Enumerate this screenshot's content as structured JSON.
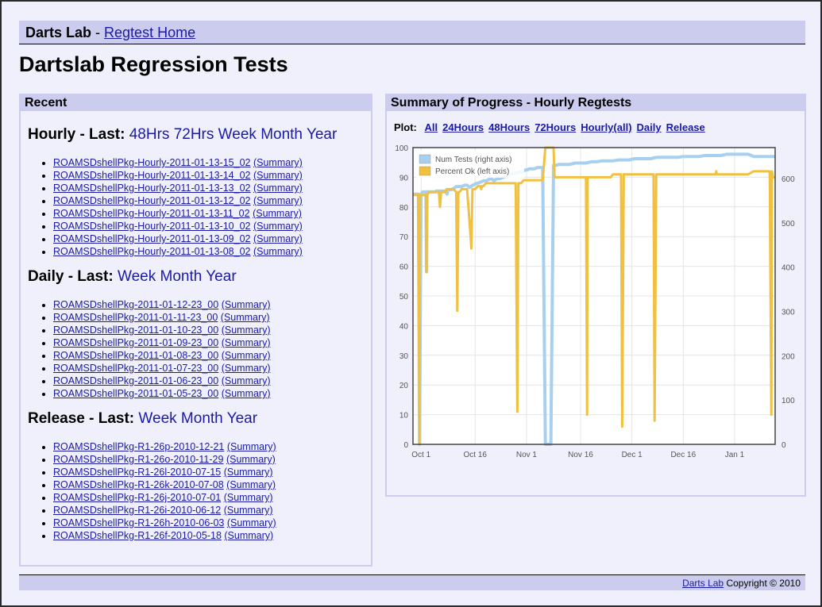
{
  "header": {
    "brand": "Darts Lab",
    "separator": " - ",
    "home_link": "Regtest Home"
  },
  "page_title": "Dartslab Regression Tests",
  "recent": {
    "title": "Recent",
    "hourly": {
      "label": "Hourly - Last:",
      "periods": [
        "48Hrs",
        "72Hrs",
        "Week",
        "Month",
        "Year"
      ],
      "items": [
        "ROAMSDshellPkg-Hourly-2011-01-13-15_02",
        "ROAMSDshellPkg-Hourly-2011-01-13-14_02",
        "ROAMSDshellPkg-Hourly-2011-01-13-13_02",
        "ROAMSDshellPkg-Hourly-2011-01-13-12_02",
        "ROAMSDshellPkg-Hourly-2011-01-13-11_02",
        "ROAMSDshellPkg-Hourly-2011-01-13-10_02",
        "ROAMSDshellPkg-Hourly-2011-01-13-09_02",
        "ROAMSDshellPkg-Hourly-2011-01-13-08_02"
      ]
    },
    "daily": {
      "label": "Daily - Last:",
      "periods": [
        "Week",
        "Month",
        "Year"
      ],
      "items": [
        "ROAMSDshellPkg-2011-01-12-23_00",
        "ROAMSDshellPkg-2011-01-11-23_00",
        "ROAMSDshellPkg-2011-01-10-23_00",
        "ROAMSDshellPkg-2011-01-09-23_00",
        "ROAMSDshellPkg-2011-01-08-23_00",
        "ROAMSDshellPkg-2011-01-07-23_00",
        "ROAMSDshellPkg-2011-01-06-23_00",
        "ROAMSDshellPkg-2011-01-05-23_00"
      ]
    },
    "release": {
      "label": "Release - Last:",
      "periods": [
        "Week",
        "Month",
        "Year"
      ],
      "items": [
        "ROAMSDshellPkg-R1-26p-2010-12-21",
        "ROAMSDshellPkg-R1-26o-2010-11-29",
        "ROAMSDshellPkg-R1-26l-2010-07-15",
        "ROAMSDshellPkg-R1-26k-2010-07-08",
        "ROAMSDshellPkg-R1-26j-2010-07-01",
        "ROAMSDshellPkg-R1-26i-2010-06-12",
        "ROAMSDshellPkg-R1-26h-2010-06-03",
        "ROAMSDshellPkg-R1-26f-2010-05-18"
      ]
    },
    "summary_label": "(Summary)"
  },
  "summary": {
    "title": "Summary of Progress - Hourly Regtests",
    "plot_label": "Plot:",
    "plot_links": [
      "All",
      "24Hours",
      "48Hours",
      "72Hours",
      "Hourly(all)",
      "Daily",
      "Release"
    ]
  },
  "chart_data": {
    "type": "line",
    "x_ticks": [
      "Oct 1",
      "Oct 16",
      "Nov 1",
      "Nov 16",
      "Dec 1",
      "Dec 16",
      "Jan 1"
    ],
    "y_left": {
      "range": [
        0,
        100
      ],
      "ticks": [
        0,
        10,
        20,
        30,
        40,
        50,
        60,
        70,
        80,
        90,
        100
      ]
    },
    "y_right": {
      "range": [
        0,
        670
      ],
      "ticks": [
        0,
        100,
        200,
        300,
        400,
        500,
        600
      ]
    },
    "grid": true,
    "legend_position": "top-left",
    "series": [
      {
        "name": "Num Tests (right axis)",
        "color": "#a8d0ee",
        "axis": "right",
        "x": [
          0,
          0.5,
          1,
          2,
          3,
          5,
          8,
          10,
          12,
          15,
          18,
          20,
          24,
          25,
          26,
          30,
          32,
          34,
          36,
          40,
          44,
          47,
          48,
          48.5,
          51,
          51.5,
          52,
          56,
          60,
          63,
          64,
          66,
          70,
          72,
          76,
          80,
          81,
          82,
          85,
          90,
          95,
          100,
          105,
          110,
          111,
          112,
          115,
          120,
          125,
          130,
          135,
          140,
          145,
          150,
          155,
          160,
          165,
          170,
          175,
          180,
          185,
          190,
          195,
          200,
          205,
          210,
          212,
          215,
          220,
          225,
          230,
          235,
          240,
          245,
          250,
          255,
          260,
          261,
          262,
          265,
          270,
          280,
          290,
          300,
          310,
          320,
          330,
          340,
          350,
          360,
          364,
          365,
          366,
          370,
          380,
          390,
          400,
          410,
          420,
          430,
          440,
          450,
          460,
          470,
          475,
          480,
          490,
          500,
          510,
          520,
          530,
          540,
          550,
          560,
          570,
          580,
          590,
          600,
          610,
          620,
          630,
          640,
          650,
          660,
          670
        ],
        "y": [
          565,
          565,
          565,
          565,
          565,
          565,
          565,
          565,
          0,
          565,
          570,
          570,
          570,
          390,
          570,
          570,
          570,
          570,
          570,
          570,
          572,
          572,
          572,
          572,
          572,
          572,
          572,
          572,
          572,
          565,
          572,
          575,
          575,
          575,
          578,
          582,
          582,
          582,
          582,
          582,
          585,
          585,
          580,
          585,
          585,
          585,
          588,
          590,
          592,
          595,
          595,
          598,
          600,
          595,
          600,
          600,
          602,
          605,
          605,
          610,
          612,
          612,
          615,
          615,
          618,
          620,
          620,
          622,
          622,
          622,
          625,
          625,
          625,
          0,
          0,
          0,
          630,
          630,
          630,
          630,
          632,
          632,
          632,
          635,
          635,
          635,
          638,
          638,
          640,
          640,
          640,
          640,
          640,
          640,
          642,
          642,
          642,
          645,
          645,
          645,
          645,
          648,
          648,
          648,
          648,
          648,
          648,
          650,
          650,
          650,
          650,
          652,
          652,
          652,
          652,
          655,
          655,
          655,
          655,
          655,
          650,
          650,
          650,
          650,
          650
        ]
      },
      {
        "name": "Percent Ok (left axis)",
        "color": "#f0c040",
        "axis": "left",
        "x": [
          0,
          5,
          10,
          12,
          13,
          15,
          20,
          24,
          25,
          26,
          30,
          40,
          48,
          50,
          52,
          56,
          60,
          62,
          64,
          66,
          70,
          75,
          80,
          82,
          84,
          86,
          90,
          94,
          100,
          105,
          108,
          110,
          112,
          115,
          120,
          125,
          126,
          128,
          130,
          135,
          140,
          150,
          160,
          170,
          180,
          190,
          192,
          193,
          195,
          200,
          205,
          210,
          215,
          220,
          225,
          230,
          240,
          245,
          250,
          260,
          262,
          264,
          270,
          280,
          290,
          300,
          310,
          320,
          322,
          323,
          325,
          330,
          340,
          350,
          360,
          364,
          366,
          370,
          380,
          385,
          387,
          390,
          400,
          410,
          420,
          430,
          440,
          445,
          447,
          450,
          460,
          470,
          480,
          490,
          500,
          510,
          520,
          530,
          540,
          550,
          560,
          561,
          562,
          570,
          580,
          590,
          600,
          610,
          620,
          630,
          640,
          650,
          660,
          663,
          664,
          666,
          670
        ],
        "y": [
          84,
          84,
          84,
          0,
          84,
          84,
          84,
          84,
          58,
          84,
          85,
          85,
          85,
          80,
          85,
          85,
          85,
          86,
          86,
          86,
          86,
          86,
          85,
          45,
          85,
          85,
          86,
          86,
          86,
          74,
          66,
          86,
          86,
          86,
          87,
          87,
          86,
          87,
          87,
          88,
          88,
          88,
          88,
          88,
          88,
          88,
          35,
          11,
          88,
          88,
          89,
          89,
          89,
          89,
          89,
          89,
          89,
          100,
          100,
          100,
          90,
          90,
          90,
          90,
          90,
          90,
          90,
          90,
          10,
          90,
          90,
          90,
          90,
          90,
          90,
          90,
          90,
          91,
          91,
          91,
          6,
          91,
          91,
          91,
          91,
          91,
          91,
          91,
          8,
          91,
          91,
          91,
          91,
          91,
          91,
          91,
          91,
          91,
          91,
          91,
          91,
          92,
          91,
          91,
          91,
          91,
          91,
          91,
          91,
          92,
          92,
          92,
          92,
          10,
          92,
          90,
          90
        ]
      }
    ]
  },
  "footer": {
    "link": "Darts Lab",
    "copyright": "Copyright © 2010"
  }
}
